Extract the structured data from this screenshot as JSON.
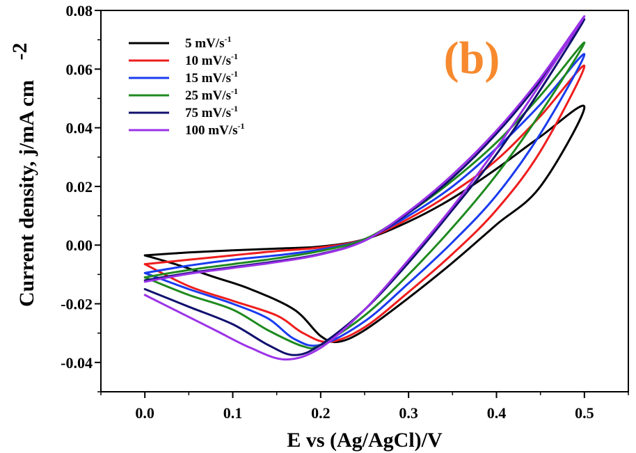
{
  "chart_data": {
    "type": "line",
    "panel_label": "(b)",
    "xlabel": "E vs (Ag/AgCl)/V",
    "ylabel": "Current density, j/mA cm",
    "ylabel_superscript": "-2",
    "xlim": [
      -0.05,
      0.55
    ],
    "ylim": [
      -0.05,
      0.08
    ],
    "x_ticks": [
      0.0,
      0.1,
      0.2,
      0.3,
      0.4,
      0.5
    ],
    "x_tick_labels": [
      "0.0",
      "0.1",
      "0.2",
      "0.3",
      "0.4",
      "0.5"
    ],
    "y_ticks": [
      -0.04,
      -0.02,
      0.0,
      0.02,
      0.04,
      0.06,
      0.08
    ],
    "y_tick_labels": [
      "-0.04",
      "-0.02",
      "0.00",
      "0.02",
      "0.04",
      "0.06",
      "0.08"
    ],
    "grid": false,
    "legend_position": "top-left",
    "panel_label_color": "#f7892e",
    "series": [
      {
        "name": "5 mV/s",
        "unit_superscript": "-1",
        "color": "#000000",
        "forward": [
          [
            0.0,
            -0.0035
          ],
          [
            0.05,
            -0.0025
          ],
          [
            0.1,
            -0.0018
          ],
          [
            0.15,
            -0.0012
          ],
          [
            0.2,
            -0.0005
          ],
          [
            0.25,
            0.002
          ],
          [
            0.3,
            0.008
          ],
          [
            0.35,
            0.016
          ],
          [
            0.4,
            0.026
          ],
          [
            0.45,
            0.037
          ],
          [
            0.5,
            0.047
          ]
        ],
        "reverse": [
          [
            0.5,
            0.047
          ],
          [
            0.45,
            0.02
          ],
          [
            0.4,
            0.007
          ],
          [
            0.35,
            -0.006
          ],
          [
            0.3,
            -0.018
          ],
          [
            0.25,
            -0.029
          ],
          [
            0.22,
            -0.033
          ],
          [
            0.2,
            -0.031
          ],
          [
            0.17,
            -0.022
          ],
          [
            0.12,
            -0.015
          ],
          [
            0.08,
            -0.011
          ],
          [
            0.04,
            -0.007
          ],
          [
            0.0,
            -0.0035
          ]
        ]
      },
      {
        "name": "10 mV/s",
        "unit_superscript": "-1",
        "color": "#ee1d1d",
        "forward": [
          [
            0.0,
            -0.0065
          ],
          [
            0.05,
            -0.005
          ],
          [
            0.1,
            -0.0035
          ],
          [
            0.15,
            -0.002
          ],
          [
            0.2,
            -0.0008
          ],
          [
            0.25,
            0.002
          ],
          [
            0.3,
            0.009
          ],
          [
            0.35,
            0.018
          ],
          [
            0.4,
            0.029
          ],
          [
            0.45,
            0.044
          ],
          [
            0.5,
            0.061
          ]
        ],
        "reverse": [
          [
            0.5,
            0.061
          ],
          [
            0.45,
            0.032
          ],
          [
            0.4,
            0.012
          ],
          [
            0.35,
            -0.003
          ],
          [
            0.3,
            -0.016
          ],
          [
            0.25,
            -0.028
          ],
          [
            0.21,
            -0.033
          ],
          [
            0.18,
            -0.03
          ],
          [
            0.15,
            -0.024
          ],
          [
            0.1,
            -0.019
          ],
          [
            0.05,
            -0.014
          ],
          [
            0.0,
            -0.0065
          ]
        ]
      },
      {
        "name": "15 mV/s",
        "unit_superscript": "-1",
        "color": "#1a3bef",
        "forward": [
          [
            0.0,
            -0.0095
          ],
          [
            0.05,
            -0.007
          ],
          [
            0.1,
            -0.005
          ],
          [
            0.15,
            -0.0035
          ],
          [
            0.2,
            -0.0015
          ],
          [
            0.25,
            0.002
          ],
          [
            0.3,
            0.01
          ],
          [
            0.35,
            0.02
          ],
          [
            0.4,
            0.033
          ],
          [
            0.45,
            0.048
          ],
          [
            0.5,
            0.065
          ]
        ],
        "reverse": [
          [
            0.5,
            0.065
          ],
          [
            0.45,
            0.038
          ],
          [
            0.4,
            0.017
          ],
          [
            0.35,
            0.001
          ],
          [
            0.3,
            -0.013
          ],
          [
            0.25,
            -0.026
          ],
          [
            0.2,
            -0.034
          ],
          [
            0.17,
            -0.032
          ],
          [
            0.14,
            -0.025
          ],
          [
            0.1,
            -0.02
          ],
          [
            0.05,
            -0.015
          ],
          [
            0.0,
            -0.0095
          ]
        ]
      },
      {
        "name": "25 mV/s",
        "unit_superscript": "-1",
        "color": "#1f8a1f",
        "forward": [
          [
            0.0,
            -0.011
          ],
          [
            0.05,
            -0.0085
          ],
          [
            0.1,
            -0.0065
          ],
          [
            0.15,
            -0.0045
          ],
          [
            0.2,
            -0.002
          ],
          [
            0.25,
            0.002
          ],
          [
            0.3,
            0.011
          ],
          [
            0.35,
            0.022
          ],
          [
            0.4,
            0.035
          ],
          [
            0.45,
            0.051
          ],
          [
            0.5,
            0.069
          ]
        ],
        "reverse": [
          [
            0.5,
            0.069
          ],
          [
            0.45,
            0.045
          ],
          [
            0.4,
            0.024
          ],
          [
            0.35,
            0.006
          ],
          [
            0.3,
            -0.01
          ],
          [
            0.25,
            -0.024
          ],
          [
            0.2,
            -0.034
          ],
          [
            0.18,
            -0.0345
          ],
          [
            0.14,
            -0.029
          ],
          [
            0.1,
            -0.022
          ],
          [
            0.05,
            -0.017
          ],
          [
            0.0,
            -0.011
          ]
        ]
      },
      {
        "name": "75 mV/s",
        "unit_superscript": "-1",
        "color": "#10106e",
        "forward": [
          [
            0.0,
            -0.012
          ],
          [
            0.05,
            -0.0095
          ],
          [
            0.1,
            -0.0075
          ],
          [
            0.15,
            -0.0055
          ],
          [
            0.2,
            -0.003
          ],
          [
            0.25,
            0.0015
          ],
          [
            0.3,
            0.011
          ],
          [
            0.35,
            0.023
          ],
          [
            0.4,
            0.038
          ],
          [
            0.45,
            0.056
          ],
          [
            0.5,
            0.077
          ]
        ],
        "reverse": [
          [
            0.5,
            0.077
          ],
          [
            0.45,
            0.053
          ],
          [
            0.4,
            0.031
          ],
          [
            0.35,
            0.012
          ],
          [
            0.3,
            -0.006
          ],
          [
            0.25,
            -0.022
          ],
          [
            0.2,
            -0.034
          ],
          [
            0.17,
            -0.0375
          ],
          [
            0.14,
            -0.034
          ],
          [
            0.1,
            -0.027
          ],
          [
            0.05,
            -0.021
          ],
          [
            0.0,
            -0.015
          ]
        ]
      },
      {
        "name": "100 mV/s",
        "unit_superscript": "-1",
        "color": "#9b32e8",
        "forward": [
          [
            0.0,
            -0.0125
          ],
          [
            0.05,
            -0.0098
          ],
          [
            0.1,
            -0.0078
          ],
          [
            0.15,
            -0.0058
          ],
          [
            0.2,
            -0.0032
          ],
          [
            0.25,
            0.0015
          ],
          [
            0.3,
            0.0115
          ],
          [
            0.35,
            0.024
          ],
          [
            0.4,
            0.039
          ],
          [
            0.45,
            0.057
          ],
          [
            0.5,
            0.078
          ]
        ],
        "reverse": [
          [
            0.5,
            0.078
          ],
          [
            0.45,
            0.055
          ],
          [
            0.4,
            0.033
          ],
          [
            0.35,
            0.013
          ],
          [
            0.3,
            -0.005
          ],
          [
            0.25,
            -0.022
          ],
          [
            0.2,
            -0.035
          ],
          [
            0.16,
            -0.039
          ],
          [
            0.12,
            -0.035
          ],
          [
            0.08,
            -0.029
          ],
          [
            0.04,
            -0.023
          ],
          [
            0.0,
            -0.017
          ]
        ]
      }
    ]
  }
}
